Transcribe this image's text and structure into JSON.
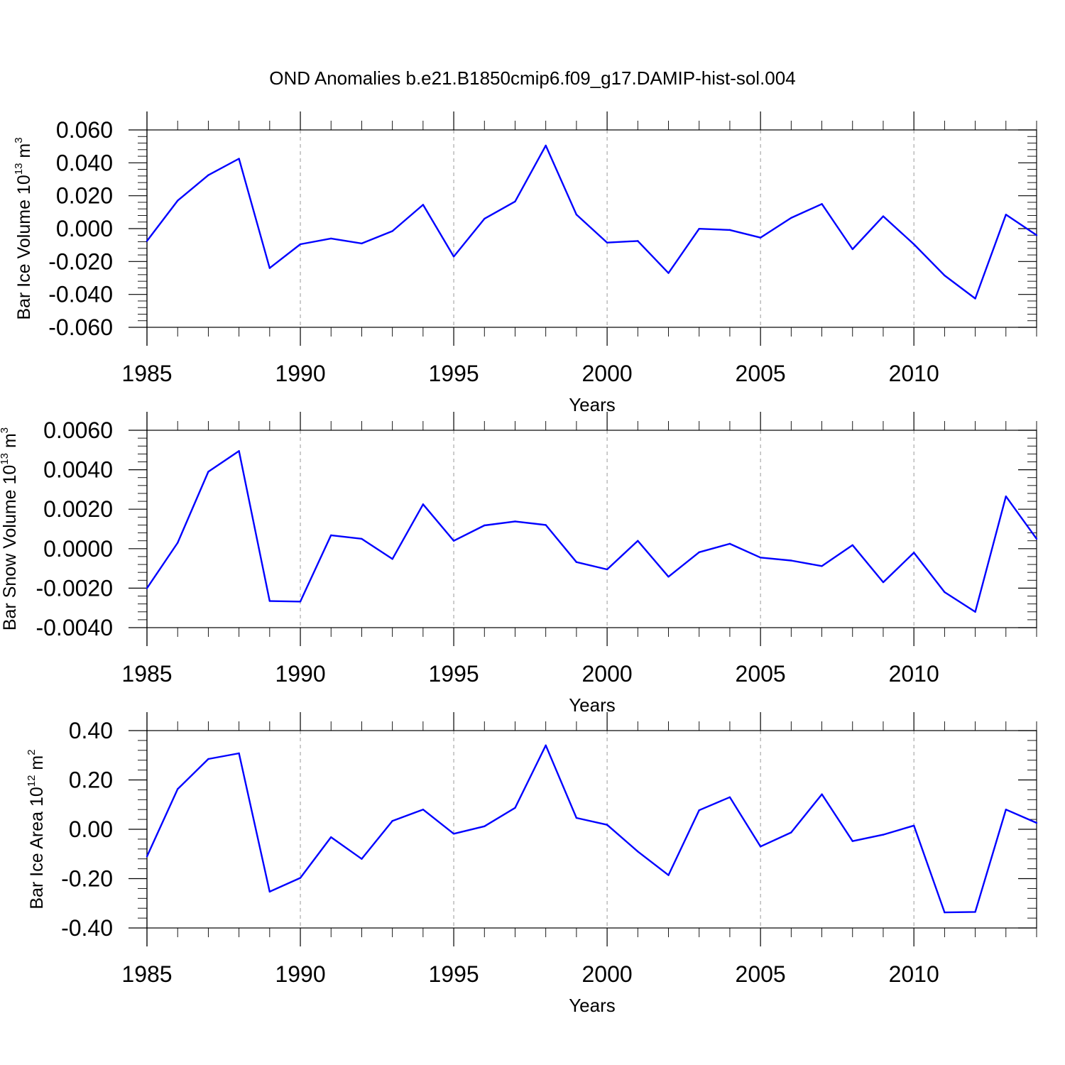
{
  "figure_title": "OND Anomalies b.e21.B1850cmip6.f09_g17.DAMIP-hist-sol.004",
  "colors": {
    "line": "#0000ff",
    "grid": "#999999",
    "axis": "#000000"
  },
  "chart_data": [
    {
      "type": "line",
      "ylabel": {
        "main": "Bar Ice Volume 10",
        "sup1": "13",
        "unit": " m",
        "sup2": "3"
      },
      "xlabel": "Years",
      "xlim": [
        1985,
        2014
      ],
      "ylim": [
        -0.06,
        0.06
      ],
      "x_ticks": [
        1985,
        1990,
        1995,
        2000,
        2005,
        2010
      ],
      "y_ticks": [
        -0.06,
        -0.04,
        -0.02,
        0.0,
        0.02,
        0.04,
        0.06
      ],
      "y_tick_labels": [
        "-0.060",
        "-0.040",
        "-0.020",
        "0.000",
        "0.020",
        "0.040",
        "0.060"
      ],
      "grid_x": [
        1990,
        1995,
        2000,
        2005,
        2010
      ],
      "x": [
        1985,
        1986,
        1987,
        1988,
        1989,
        1990,
        1991,
        1992,
        1993,
        1994,
        1995,
        1996,
        1997,
        1998,
        1999,
        2000,
        2001,
        2002,
        2003,
        2004,
        2005,
        2006,
        2007,
        2008,
        2009,
        2010,
        2011,
        2012,
        2013,
        2014
      ],
      "values": [
        -0.0075,
        0.017,
        0.0325,
        0.0425,
        -0.024,
        -0.0095,
        -0.006,
        -0.009,
        -0.0015,
        0.0145,
        -0.017,
        0.006,
        0.0165,
        0.0505,
        0.0085,
        -0.0085,
        -0.0075,
        -0.027,
        -0.0001,
        -0.0008,
        -0.0055,
        0.0065,
        0.015,
        -0.0125,
        0.0075,
        -0.0095,
        -0.0285,
        -0.0425,
        0.0085,
        -0.004
      ]
    },
    {
      "type": "line",
      "ylabel": {
        "main": "Bar Snow Volume 10",
        "sup1": "13",
        "unit": " m",
        "sup2": "3"
      },
      "xlabel": "Years",
      "xlim": [
        1985,
        2014
      ],
      "ylim": [
        -0.004,
        0.006
      ],
      "x_ticks": [
        1985,
        1990,
        1995,
        2000,
        2005,
        2010
      ],
      "y_ticks": [
        -0.004,
        -0.002,
        0.0,
        0.002,
        0.004,
        0.006
      ],
      "y_tick_labels": [
        "-0.0040",
        "-0.0020",
        "0.0000",
        "0.0020",
        "0.0040",
        "0.0060"
      ],
      "grid_x": [
        1990,
        1995,
        2000,
        2005,
        2010
      ],
      "x": [
        1985,
        1986,
        1987,
        1988,
        1989,
        1990,
        1991,
        1992,
        1993,
        1994,
        1995,
        1996,
        1997,
        1998,
        1999,
        2000,
        2001,
        2002,
        2003,
        2004,
        2005,
        2006,
        2007,
        2008,
        2009,
        2010,
        2011,
        2012,
        2013,
        2014
      ],
      "values": [
        -0.002,
        0.0003,
        0.0039,
        0.00495,
        -0.00265,
        -0.00268,
        0.00068,
        0.0005,
        -0.00052,
        0.00225,
        0.0004,
        0.00118,
        0.00138,
        0.0012,
        -0.00068,
        -0.00105,
        0.0004,
        -0.00142,
        -0.00018,
        0.00025,
        -0.00045,
        -0.0006,
        -0.00088,
        0.00018,
        -0.0017,
        -0.0002,
        -0.0022,
        -0.0032,
        0.00265,
        0.0005
      ]
    },
    {
      "type": "line",
      "ylabel": {
        "main": "Bar Ice Area 10",
        "sup1": "12",
        "unit": " m",
        "sup2": "2"
      },
      "xlabel": "Years",
      "xlim": [
        1985,
        2014
      ],
      "ylim": [
        -0.4,
        0.4
      ],
      "x_ticks": [
        1985,
        1990,
        1995,
        2000,
        2005,
        2010
      ],
      "y_ticks": [
        -0.4,
        -0.2,
        0.0,
        0.2,
        0.4
      ],
      "y_tick_labels": [
        "-0.40",
        "-0.20",
        "0.00",
        "0.20",
        "0.40"
      ],
      "grid_x": [
        1990,
        1995,
        2000,
        2005,
        2010
      ],
      "x": [
        1985,
        1986,
        1987,
        1988,
        1989,
        1990,
        1991,
        1992,
        1993,
        1994,
        1995,
        1996,
        1997,
        1998,
        1999,
        2000,
        2001,
        2002,
        2003,
        2004,
        2005,
        2006,
        2007,
        2008,
        2009,
        2010,
        2011,
        2012,
        2013,
        2014
      ],
      "values": [
        -0.11,
        0.163,
        0.285,
        0.308,
        -0.253,
        -0.197,
        -0.032,
        -0.12,
        0.034,
        0.08,
        -0.018,
        0.012,
        0.087,
        0.34,
        0.046,
        0.018,
        -0.09,
        -0.186,
        0.077,
        0.13,
        -0.07,
        -0.013,
        0.142,
        -0.048,
        -0.022,
        0.015,
        -0.337,
        -0.335,
        0.08,
        0.026
      ]
    }
  ]
}
